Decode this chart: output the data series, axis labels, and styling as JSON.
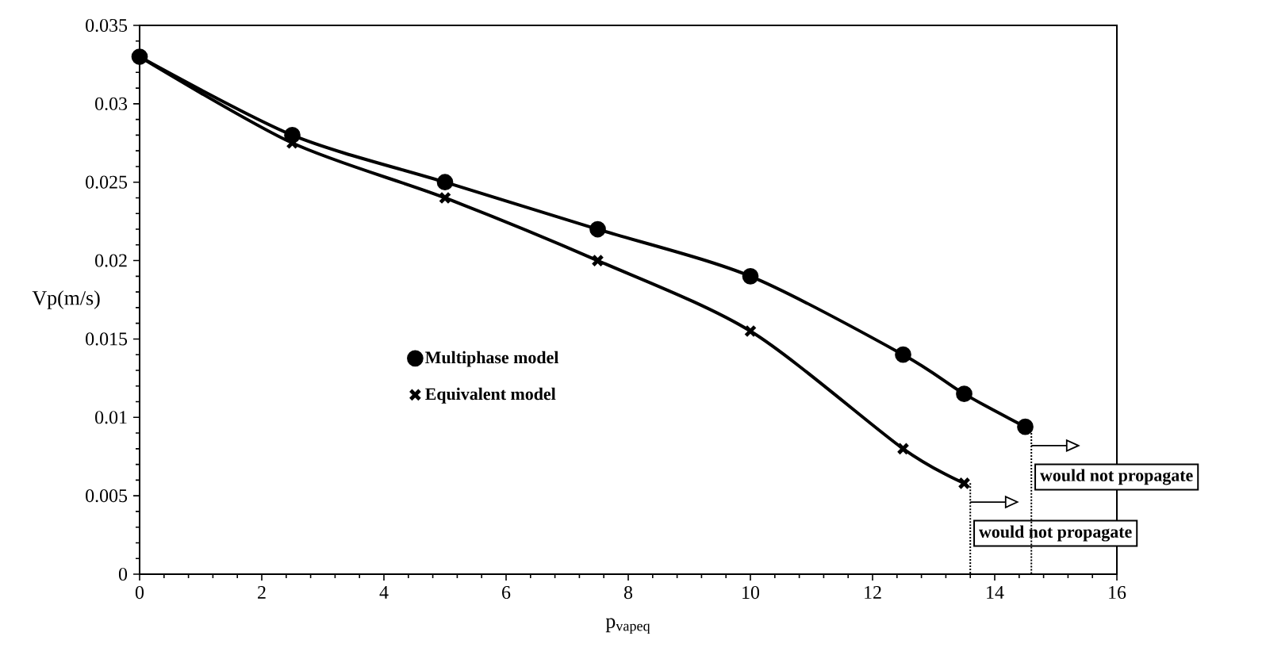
{
  "chart_data": {
    "type": "line",
    "xlabel": "p$_{vapeq}$",
    "ylabel": "Vp(m/s)",
    "x": [
      0,
      2.5,
      5,
      7.5,
      10,
      12.5,
      13.5,
      14.5
    ],
    "series": [
      {
        "name": "Multiphase model",
        "color": "#000000",
        "marker": "circle",
        "values": [
          0.033,
          0.028,
          0.025,
          0.022,
          0.019,
          0.014,
          0.0115,
          0.0094
        ]
      },
      {
        "name": "Equivalent model",
        "color": "#000000",
        "marker": "cross",
        "x": [
          0,
          2.5,
          5,
          7.5,
          10,
          12.5,
          13.5
        ],
        "values": [
          0.033,
          0.0275,
          0.024,
          0.02,
          0.0155,
          0.008,
          0.0058
        ]
      }
    ],
    "xlim": [
      0,
      16
    ],
    "xticks": [
      0,
      2,
      4,
      6,
      8,
      10,
      12,
      14,
      16
    ],
    "ylim": [
      0,
      0.035
    ],
    "yticks": [
      0,
      0.005,
      0.01,
      0.015,
      0.02,
      0.025,
      0.03,
      0.035
    ],
    "line_style": "solid",
    "legend": "center left",
    "grid": false,
    "annotations": [
      "would not propagate",
      "would not propagate"
    ]
  }
}
